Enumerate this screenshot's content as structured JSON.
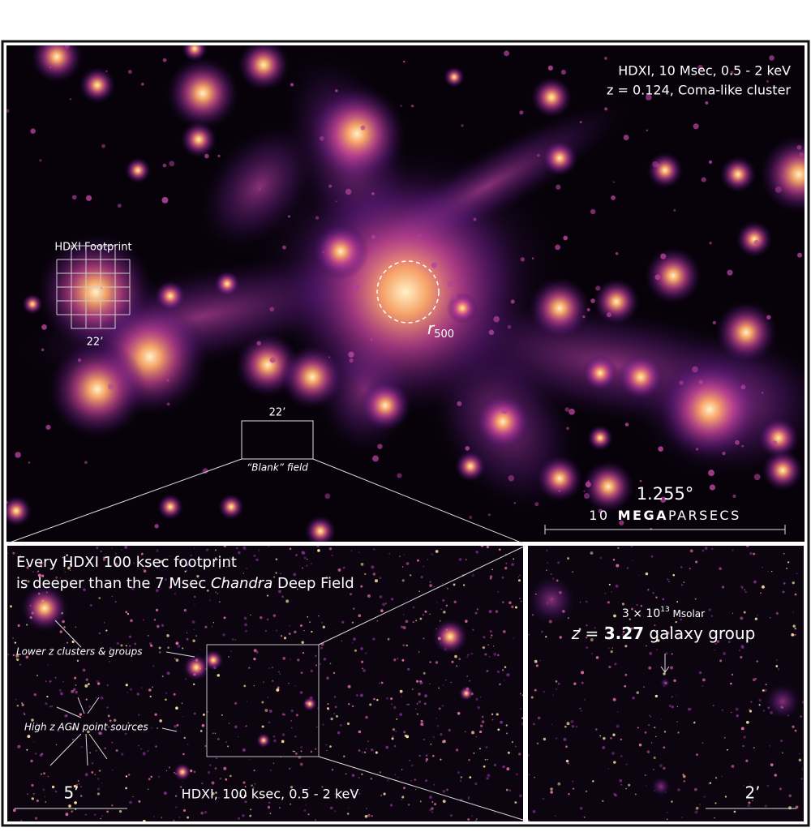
{
  "top_panel": {
    "caption_line1": "HDXI, 10 Msec, 0.5 - 2 keV",
    "caption_line2": "z = 0.124, Coma-like cluster",
    "footprint_label": "HDXI Footprint",
    "footprint_size": "22’",
    "radius_symbol": "r",
    "radius_subscript": "500",
    "blank_field_size": "22’",
    "blank_field_label": "“Blank” field",
    "scale_angle": "1.255°",
    "scale_number": "10",
    "scale_unit_bold": "MEGA",
    "scale_unit_rest": "PARSECS"
  },
  "left_panel": {
    "headline_line1": "Every HDXI 100 ksec footprint",
    "headline_line2_before": "is deeper than the 7 Msec ",
    "headline_line2_italic": "Chandra",
    "headline_line2_after": " Deep Field",
    "clusters_label": "Lower z clusters & groups",
    "agn_label": "High z AGN point sources",
    "scale_label": "5’",
    "caption": "HDXI; 100 ksec, 0.5 - 2 keV"
  },
  "right_panel": {
    "mass_prefix": "3 × 10",
    "mass_exponent": "13",
    "mass_unit": " Msolar",
    "group_z_symbol": "z",
    "group_z_equals": " = ",
    "group_z_value": "3.27",
    "group_label": " galaxy group",
    "scale_label": "2’"
  }
}
